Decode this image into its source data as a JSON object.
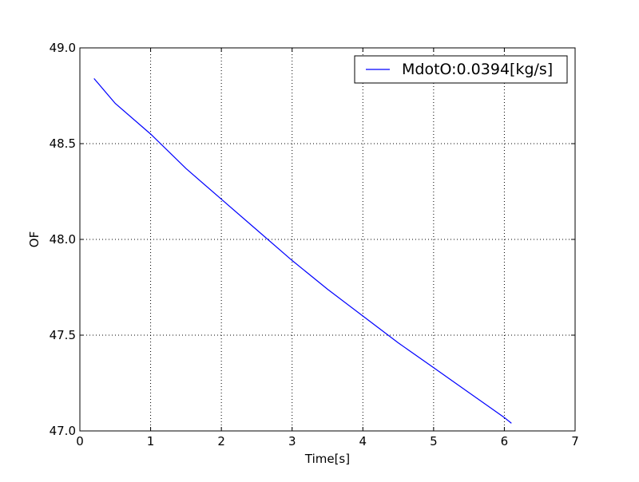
{
  "chart_data": {
    "type": "line",
    "title": "",
    "xlabel": "Time[s]",
    "ylabel": "OF",
    "xlim": [
      0,
      7
    ],
    "ylim": [
      47.0,
      49.0
    ],
    "xticks": [
      0,
      1,
      2,
      3,
      4,
      5,
      6,
      7
    ],
    "yticks": [
      47.0,
      47.5,
      48.0,
      48.5,
      49.0
    ],
    "xtick_labels": [
      "0",
      "1",
      "2",
      "3",
      "4",
      "5",
      "6",
      "7"
    ],
    "ytick_labels": [
      "47.0",
      "47.5",
      "48.0",
      "48.5",
      "49.0"
    ],
    "grid": true,
    "legend_position": "top-right",
    "series": [
      {
        "name": "MdotO:0.0394[kg/s]",
        "color": "#0000ff",
        "x": [
          0.2,
          0.5,
          1.0,
          1.5,
          2.0,
          2.5,
          3.0,
          3.5,
          4.0,
          4.5,
          5.0,
          5.5,
          6.0,
          6.1
        ],
        "y": [
          48.84,
          48.71,
          48.55,
          48.37,
          48.21,
          48.05,
          47.89,
          47.74,
          47.6,
          47.46,
          47.33,
          47.2,
          47.07,
          47.04
        ]
      }
    ]
  }
}
